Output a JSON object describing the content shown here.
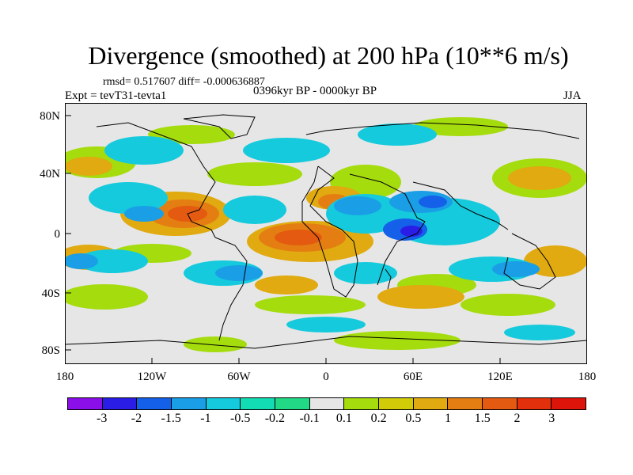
{
  "title": "Divergence (smoothed) at 200 hPa (10**6 m/s)",
  "stats": "rmsd= 0.517607 diff= -0.000636887",
  "experiment": "Expt = tevT31-tevta1",
  "period": "0396kyr BP - 0000kyr BP",
  "season": "JJA",
  "y_ticks": [
    "80N",
    "40N",
    "0",
    "40S",
    "80S"
  ],
  "x_ticks": [
    "180",
    "120W",
    "60W",
    "0",
    "60E",
    "120E",
    "180"
  ],
  "colorbar": {
    "colors": [
      "#8a0fe8",
      "#2a1ee6",
      "#1560e8",
      "#1a9ee6",
      "#15cadc",
      "#12dcb4",
      "#22d986",
      "#e6e6e6",
      "#a5dc0e",
      "#d2cc08",
      "#e0aa10",
      "#e47e12",
      "#e45a10",
      "#e2300c",
      "#dc140a"
    ],
    "labels": [
      "-3",
      "-2",
      "-1.5",
      "-1",
      "-0.5",
      "-0.2",
      "-0.1",
      "0.1",
      "0.2",
      "0.5",
      "1",
      "1.5",
      "2",
      "3"
    ]
  }
}
